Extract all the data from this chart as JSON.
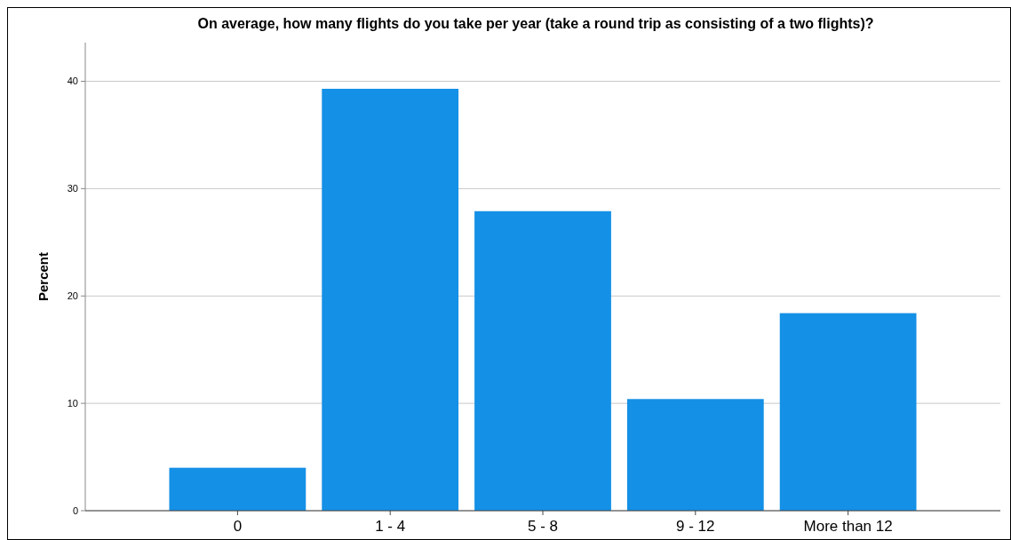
{
  "chart_data": {
    "type": "bar",
    "title": "On average, how many flights do you take per year (take a round trip as consisting of a two flights)?",
    "ylabel": "Percent",
    "categories": [
      "0",
      "1 - 4",
      "5 - 8",
      "9 - 12",
      "More than 12"
    ],
    "values": [
      4.0,
      39.3,
      27.9,
      10.4,
      18.4
    ],
    "color": "#1490e6",
    "ylim": [
      0,
      43.6
    ],
    "yticks": [
      0,
      10,
      20,
      30,
      40
    ],
    "grid": "y"
  }
}
